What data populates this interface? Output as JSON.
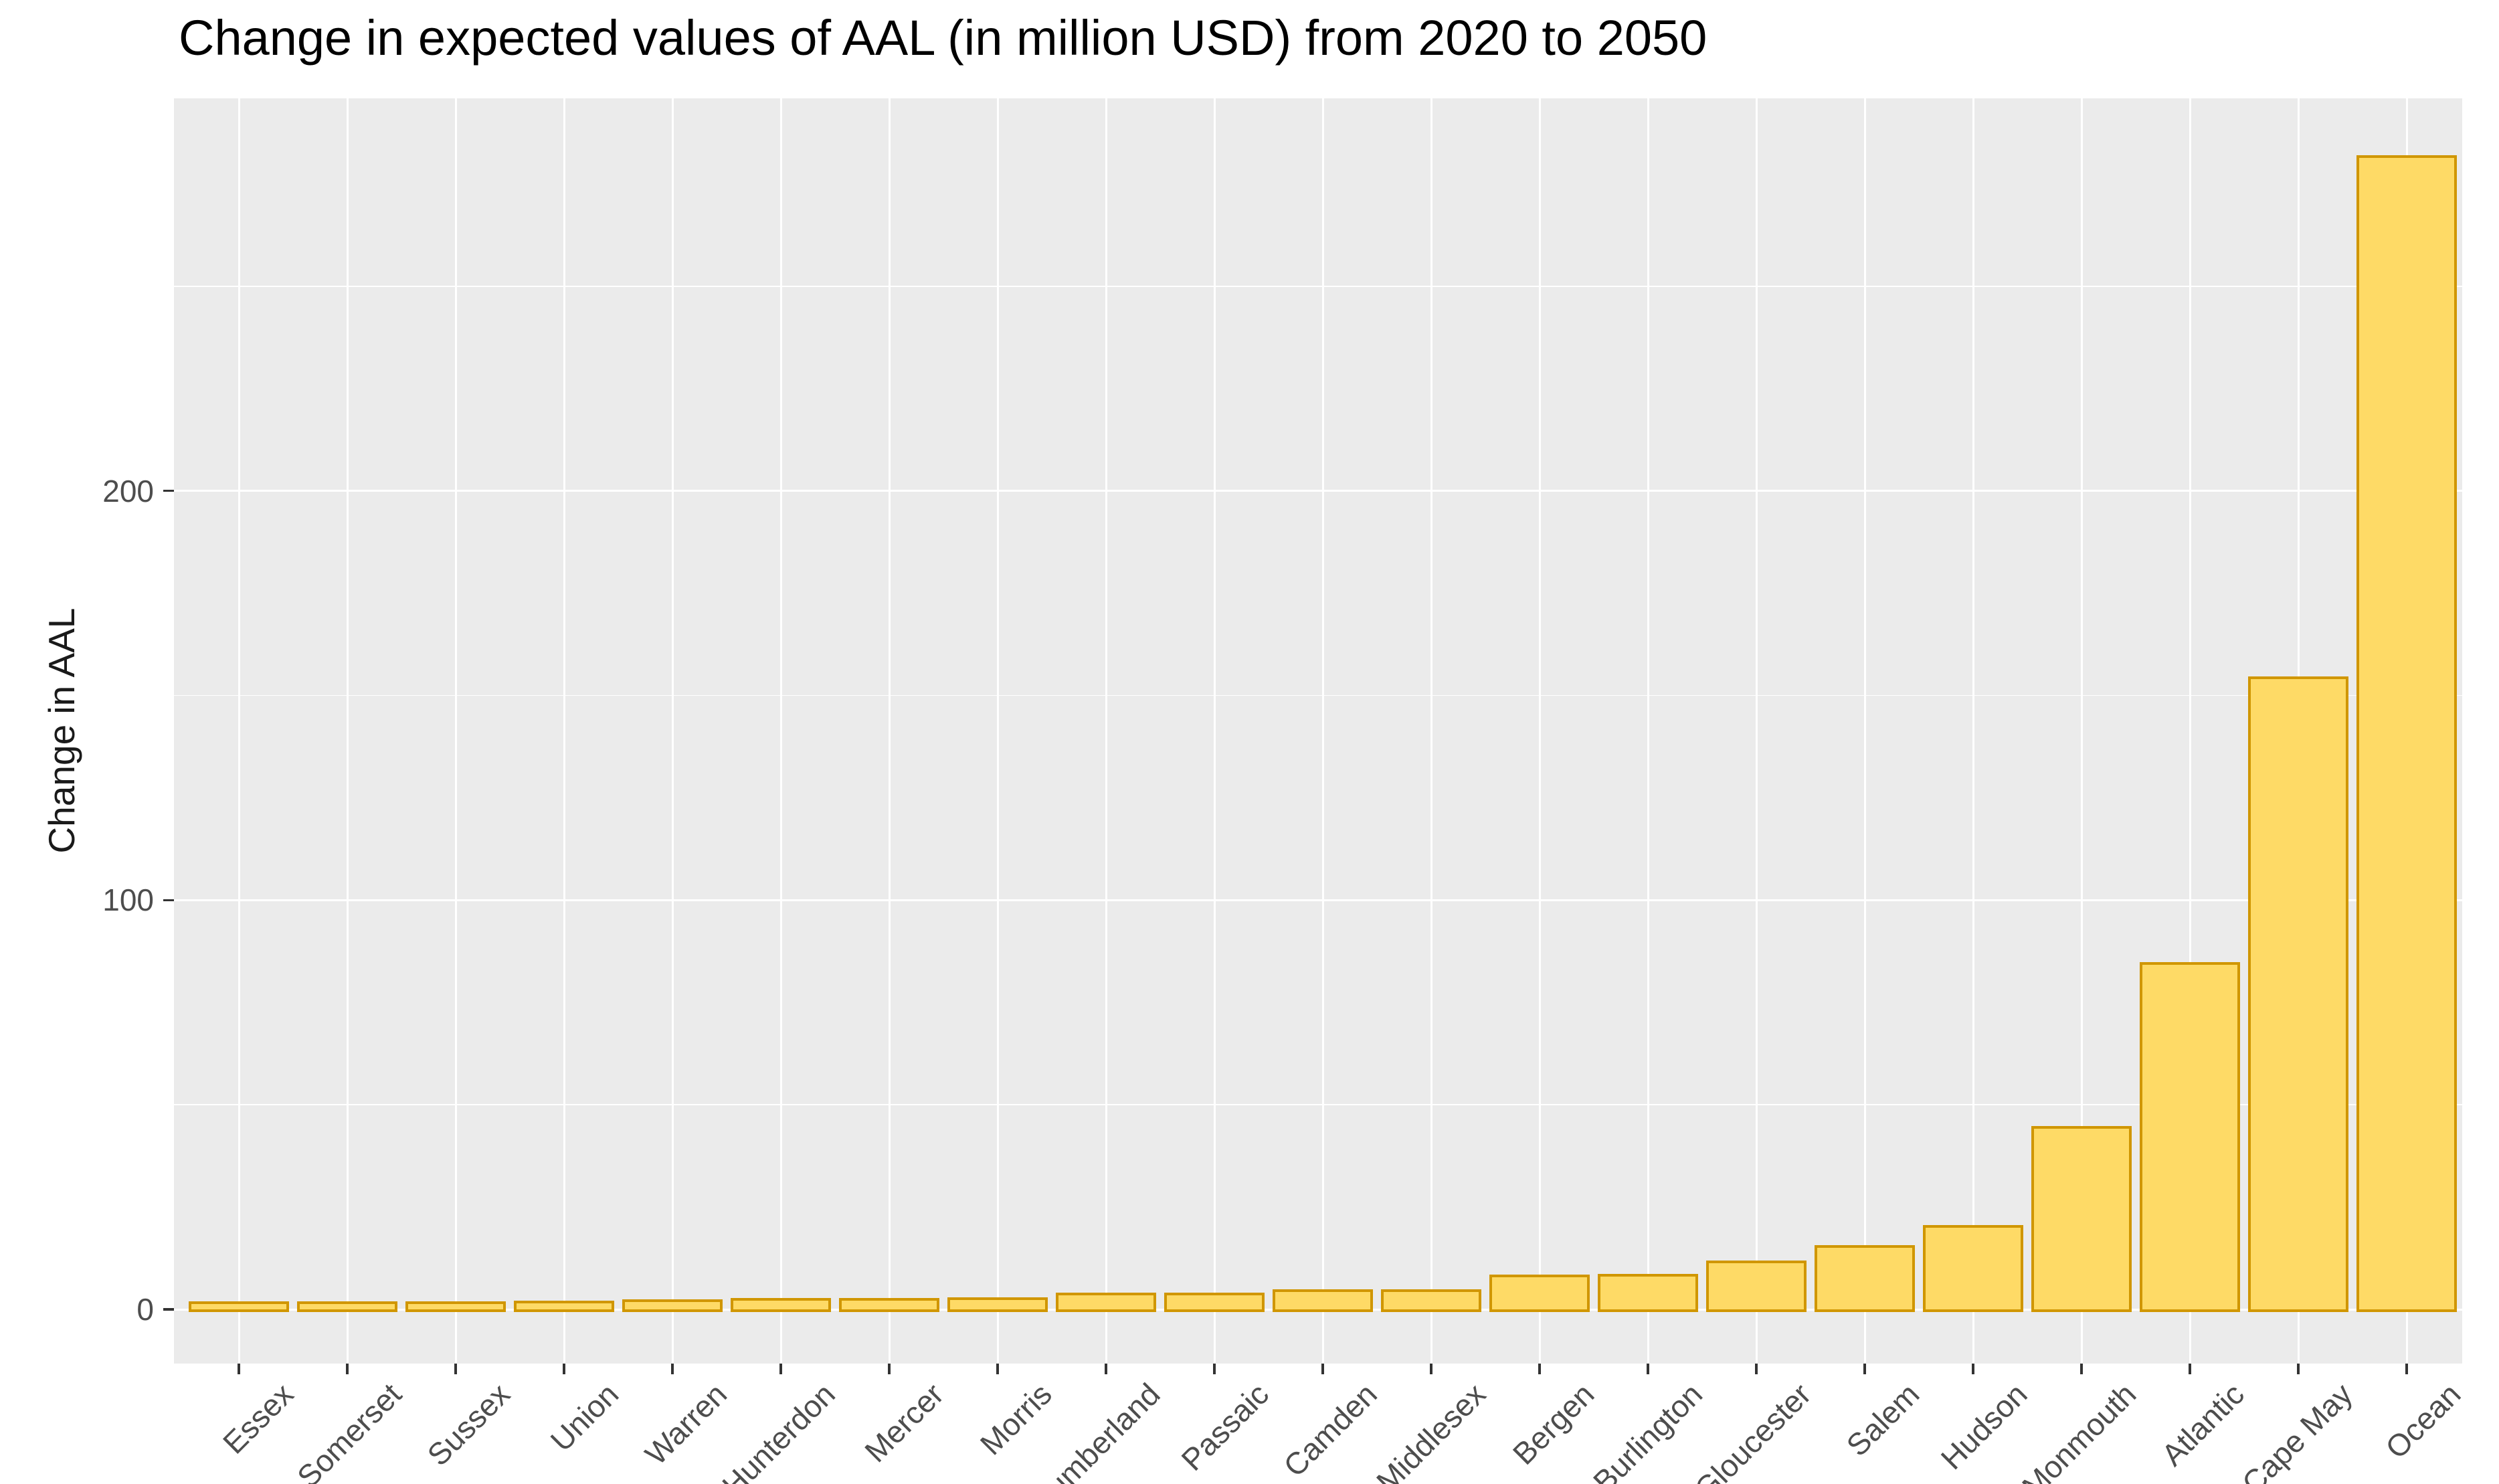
{
  "chart_data": {
    "type": "bar",
    "title": "Change in expected values of AAL (in million USD) from 2020 to 2050",
    "xlabel": "",
    "ylabel": "Change in AAL",
    "categories": [
      "Essex",
      "Somerset",
      "Sussex",
      "Union",
      "Warren",
      "Hunterdon",
      "Mercer",
      "Morris",
      "Cumberland",
      "Passaic",
      "Camden",
      "Middlesex",
      "Bergen",
      "Burlington",
      "Gloucester",
      "Salem",
      "Hudson",
      "Monmouth",
      "Atlantic",
      "Cape May",
      "Ocean"
    ],
    "values": [
      1.7,
      1.7,
      1.7,
      1.8,
      2.1,
      2.5,
      2.5,
      2.6,
      3.8,
      3.8,
      4.6,
      4.6,
      8.2,
      8.3,
      11.6,
      15.4,
      20.3,
      44.4,
      84.5,
      154.3,
      281.7
    ],
    "y_ticks": [
      {
        "value": 0,
        "label": "0"
      },
      {
        "value": 100,
        "label": "100"
      },
      {
        "value": 200,
        "label": "200"
      }
    ],
    "y_minor_gridlines": [
      50,
      150,
      250
    ],
    "ylim": [
      -14,
      296
    ],
    "grid": true,
    "legend_position": "none",
    "colors": {
      "bar_fill": "#FEDA66",
      "bar_stroke": "#D09600",
      "panel_background": "#EBEBEB",
      "gridline": "#FFFFFF",
      "axis_text": "#4D4D4D",
      "tick_mark": "#333333",
      "title_text": "#000000"
    }
  }
}
